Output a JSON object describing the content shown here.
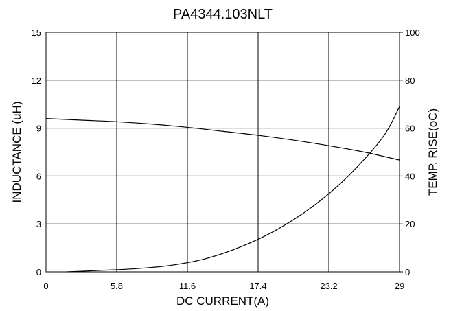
{
  "chart_data": {
    "type": "line",
    "title": "PA4344.103NLT",
    "xlabel": "DC CURRENT(A)",
    "ylabel": "INDUCTANCE (uH)",
    "y2label": "TEMP. RISE(oC)",
    "xlim": [
      0,
      29
    ],
    "ylim": [
      0,
      15
    ],
    "y2lim": [
      0,
      100
    ],
    "x_ticks": [
      "0",
      "5.8",
      "11.6",
      "17.4",
      "23.2",
      "29"
    ],
    "y_ticks": [
      "0",
      "3",
      "6",
      "9",
      "12",
      "15"
    ],
    "y2_ticks": [
      "0",
      "20",
      "40",
      "60",
      "80",
      "100"
    ],
    "grid": true,
    "series": [
      {
        "axis": "left",
        "x": [
          0,
          2.9,
          5.8,
          8.7,
          11.6,
          14.5,
          17.4,
          20.3,
          23.2,
          26.1,
          29
        ],
        "values": [
          9.6,
          9.5,
          9.4,
          9.25,
          9.05,
          8.8,
          8.55,
          8.25,
          7.9,
          7.5,
          7.0
        ]
      },
      {
        "axis": "right",
        "x": [
          1.7,
          4.4,
          7.3,
          10.2,
          13.1,
          16.0,
          18.9,
          21.8,
          24.7,
          27.6,
          29
        ],
        "values": [
          0,
          0.6,
          1.3,
          2.7,
          5.5,
          10.5,
          17.5,
          27,
          39.5,
          56,
          69
        ]
      }
    ]
  }
}
